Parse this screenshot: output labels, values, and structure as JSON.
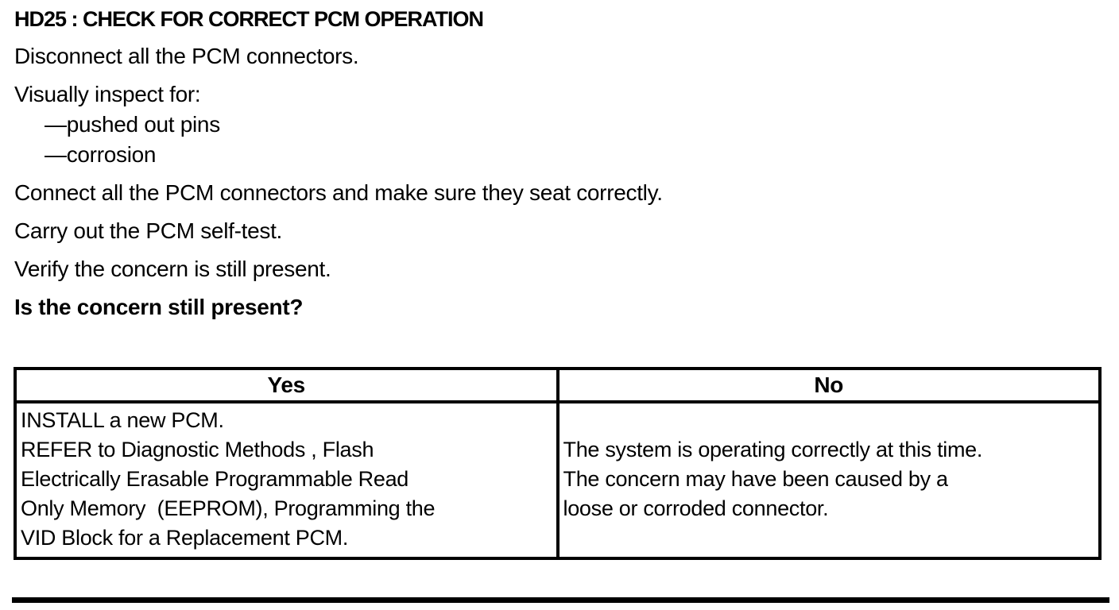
{
  "colors": {
    "ink": "#000000",
    "paper": "#ffffff"
  },
  "document": {
    "title": "HD25 : CHECK FOR CORRECT PCM OPERATION",
    "steps": {
      "s1": "Disconnect all the PCM connectors.",
      "s2": "Visually inspect for:",
      "s2_items": {
        "i1": "—pushed out pins",
        "i2": "—corrosion"
      },
      "s3": "Connect all the PCM connectors and make sure they seat correctly.",
      "s4": "Carry out the PCM self-test.",
      "s5": "Verify the concern is still present.",
      "question": "Is the concern still present?"
    },
    "decision_table": {
      "yes_header": "Yes",
      "no_header": "No",
      "yes_lines": {
        "l1": "INSTALL a new PCM.",
        "l2": "REFER to Diagnostic Methods , Flash",
        "l3": "Electrically Erasable Programmable Read",
        "l4": "Only Memory  (EEPROM), Programming the",
        "l5": "VID Block for a Replacement PCM."
      },
      "no_lines": {
        "l1": "The system is operating correctly at this time.",
        "l2": "The concern may have been caused by a",
        "l3": "loose or corroded connector."
      }
    }
  }
}
